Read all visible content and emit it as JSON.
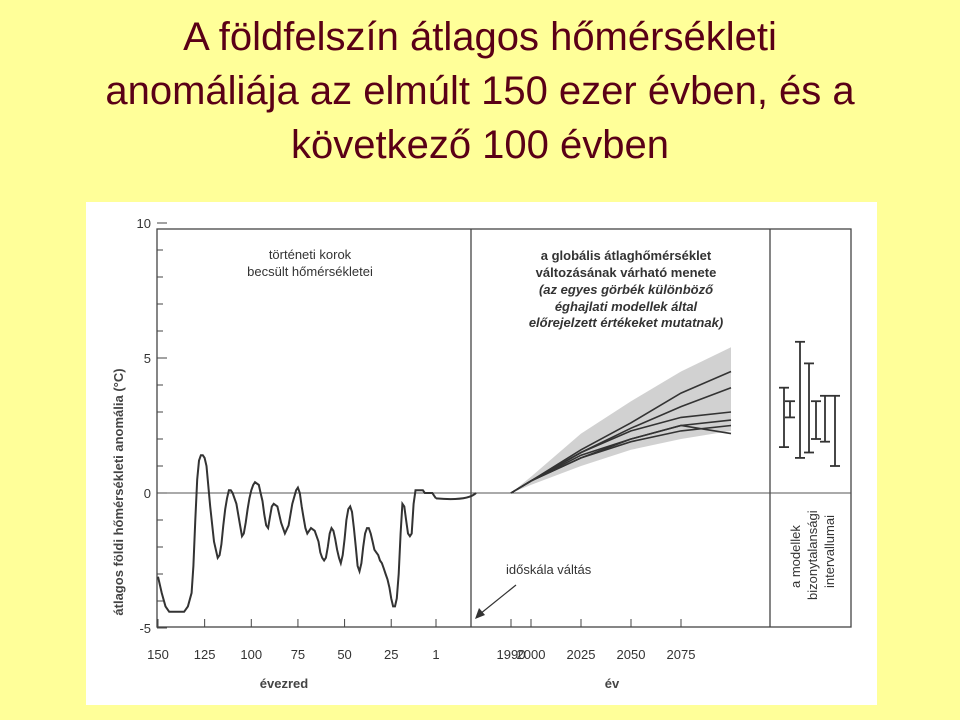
{
  "slide": {
    "title_lines": [
      "A földfelszín átlagos hőmérsékleti",
      "anomáliája az elmúlt 150 ezer évben, és a",
      "következő 100 évben"
    ]
  },
  "colors": {
    "background": "#ffff99",
    "title": "#5a0016",
    "curve": "#333333",
    "uncertainty_band": "#bdbdbd"
  },
  "chart_data": {
    "type": "line",
    "title": "",
    "ylabel": "átlagos földi hőmérsékleti anomália (°C)",
    "ylim": [
      -5,
      10
    ],
    "y_ticks": [
      "10",
      "5",
      "0",
      "-5"
    ],
    "grid": false,
    "panels": [
      {
        "id": "paleo",
        "xlabel": "évezred",
        "x_ticks": [
          "150",
          "125",
          "100",
          "75",
          "50",
          "25",
          "1"
        ],
        "xlim": [
          150,
          0
        ],
        "annotation": [
          "történeti korok",
          "becsült hőmérsékletei"
        ],
        "series": [
          {
            "x": [
              150,
              148,
              146,
              144,
              142,
              140,
              138,
              136,
              134,
              132,
              131,
              130,
              129,
              128,
              127,
              126,
              125,
              124,
              122,
              120,
              118,
              117,
              116,
              115,
              114,
              113,
              112,
              111,
              110,
              108,
              106,
              105,
              104,
              103,
              102,
              101,
              100,
              99,
              98,
              96,
              95,
              94,
              93,
              92,
              91,
              90,
              89,
              88,
              86,
              84,
              82,
              80,
              78,
              76,
              75,
              74,
              73,
              72,
              71,
              70,
              68,
              66,
              64,
              63,
              62,
              61,
              60,
              59,
              58,
              57,
              56,
              55,
              54,
              53,
              52,
              51,
              50,
              49,
              48,
              47,
              46,
              45,
              44,
              43,
              42,
              41,
              40,
              39,
              38,
              37,
              36,
              35,
              34,
              33,
              32,
              31,
              30,
              29,
              28,
              27,
              26,
              25,
              24,
              23,
              22,
              21,
              20,
              19,
              18,
              17,
              16,
              15,
              14,
              13,
              12,
              11,
              10,
              9,
              8,
              7,
              6,
              5,
              4,
              3,
              2,
              1
            ],
            "y": [
              -3.1,
              -3.7,
              -4.2,
              -4.4,
              -4.4,
              -4.4,
              -4.4,
              -4.4,
              -4.2,
              -3.7,
              -2.7,
              -1.0,
              0.5,
              1.2,
              1.4,
              1.4,
              1.3,
              1.0,
              -0.5,
              -1.8,
              -2.4,
              -2.3,
              -1.9,
              -1.2,
              -0.6,
              -0.2,
              0.1,
              0.1,
              0.0,
              -0.4,
              -1.2,
              -1.6,
              -1.5,
              -1.1,
              -0.6,
              -0.2,
              0.1,
              0.3,
              0.4,
              0.3,
              0.0,
              -0.3,
              -0.8,
              -1.2,
              -1.3,
              -0.9,
              -0.5,
              -0.4,
              -0.5,
              -1.1,
              -1.5,
              -1.2,
              -0.4,
              0.1,
              0.2,
              0.0,
              -0.5,
              -0.9,
              -1.3,
              -1.5,
              -1.3,
              -1.4,
              -1.8,
              -2.2,
              -2.4,
              -2.5,
              -2.4,
              -2.0,
              -1.5,
              -1.3,
              -1.4,
              -1.7,
              -2.1,
              -2.4,
              -2.6,
              -2.3,
              -1.7,
              -1.0,
              -0.6,
              -0.5,
              -0.7,
              -1.3,
              -2.0,
              -2.7,
              -2.9,
              -2.6,
              -2.0,
              -1.5,
              -1.3,
              -1.3,
              -1.5,
              -1.8,
              -2.1,
              -2.2,
              -2.3,
              -2.5,
              -2.6,
              -2.8,
              -3.0,
              -3.2,
              -3.5,
              -3.9,
              -4.2,
              -4.2,
              -3.9,
              -3.0,
              -1.5,
              -0.4,
              -0.5,
              -1.0,
              -1.5,
              -1.6,
              -1.5,
              -0.4,
              0.1,
              0.1,
              0.1,
              0.1,
              0.1,
              0.0,
              0.0,
              0.0,
              0.0,
              0.0,
              -0.1,
              -0.2
            ]
          }
        ]
      },
      {
        "id": "projection",
        "xlabel": "év",
        "x_ticks": [
          "1990",
          "2000",
          "2025",
          "2050",
          "2075"
        ],
        "xlim": [
          1985,
          2100
        ],
        "annotation_bold": [
          "a globális átlaghőmérséklet",
          "változásának várható menete"
        ],
        "annotation_italic": [
          "(az egyes görbék különböző",
          "éghajlati modellek által",
          "előrejelzett értékeket mutatnak)"
        ],
        "callout": "időskála váltás",
        "band": {
          "x": [
            1990,
            2000,
            2025,
            2050,
            2075,
            2100
          ],
          "upper": [
            0,
            0.6,
            2.2,
            3.4,
            4.5,
            5.4
          ],
          "lower": [
            0,
            0.3,
            1.0,
            1.6,
            2.0,
            2.3
          ]
        },
        "series": [
          {
            "x": [
              1990,
              2000,
              2025,
              2050,
              2075,
              2100
            ],
            "y": [
              0,
              0.45,
              1.6,
              2.6,
              3.7,
              4.5
            ]
          },
          {
            "x": [
              1990,
              2000,
              2025,
              2050,
              2075,
              2100
            ],
            "y": [
              0,
              0.45,
              1.5,
              2.4,
              3.2,
              3.9
            ]
          },
          {
            "x": [
              1990,
              2000,
              2025,
              2050,
              2075,
              2100
            ],
            "y": [
              0,
              0.45,
              1.5,
              2.3,
              2.8,
              3.0
            ]
          },
          {
            "x": [
              1990,
              2000,
              2025,
              2050,
              2075,
              2100
            ],
            "y": [
              0,
              0.45,
              1.4,
              2.0,
              2.5,
              2.7
            ]
          },
          {
            "x": [
              1990,
              2000,
              2025,
              2050,
              2075,
              2100
            ],
            "y": [
              0,
              0.45,
              1.3,
              1.9,
              2.3,
              2.5
            ]
          },
          {
            "x": [
              1990,
              2000,
              2025,
              2050,
              2075,
              2100
            ],
            "y": [
              0,
              0.45,
              1.3,
              2.0,
              2.5,
              2.2
            ]
          }
        ]
      },
      {
        "id": "uncertainty",
        "xlabel": "",
        "annotation_rotated": [
          "a modellek",
          "bizonytalansági",
          "intervallumai"
        ],
        "intervals": [
          {
            "low": 1.7,
            "high": 3.9
          },
          {
            "low": 2.8,
            "high": 3.4
          },
          {
            "low": 1.3,
            "high": 5.6
          },
          {
            "low": 1.5,
            "high": 4.8
          },
          {
            "low": 2.0,
            "high": 3.4
          },
          {
            "low": 1.9,
            "high": 3.6
          },
          {
            "low": 1.0,
            "high": 3.6
          }
        ]
      }
    ]
  }
}
